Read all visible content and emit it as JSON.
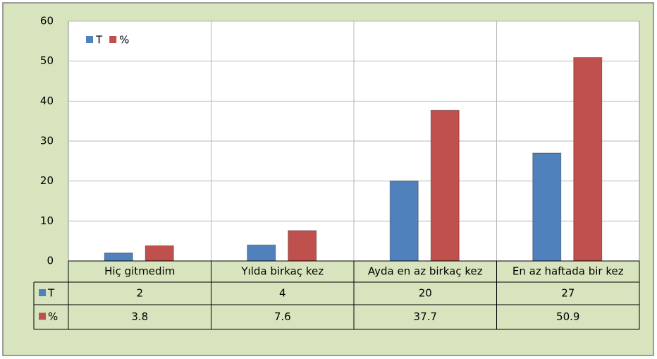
{
  "chart_data": {
    "type": "bar",
    "categories": [
      "Hiç gitmedim",
      "Yılda birkaç kez",
      "Ayda en az birkaç kez",
      "En az haftada bir kez"
    ],
    "series": [
      {
        "name": "T",
        "color": "#4f81bd",
        "values": [
          2,
          4,
          20,
          27
        ]
      },
      {
        "name": "%",
        "color": "#c0504d",
        "values": [
          3.8,
          7.6,
          37.7,
          50.9
        ]
      }
    ],
    "ylim": [
      0,
      60
    ],
    "yticks": [
      0,
      10,
      20,
      30,
      40,
      50,
      60
    ],
    "grid": true,
    "legend": "top-left"
  }
}
